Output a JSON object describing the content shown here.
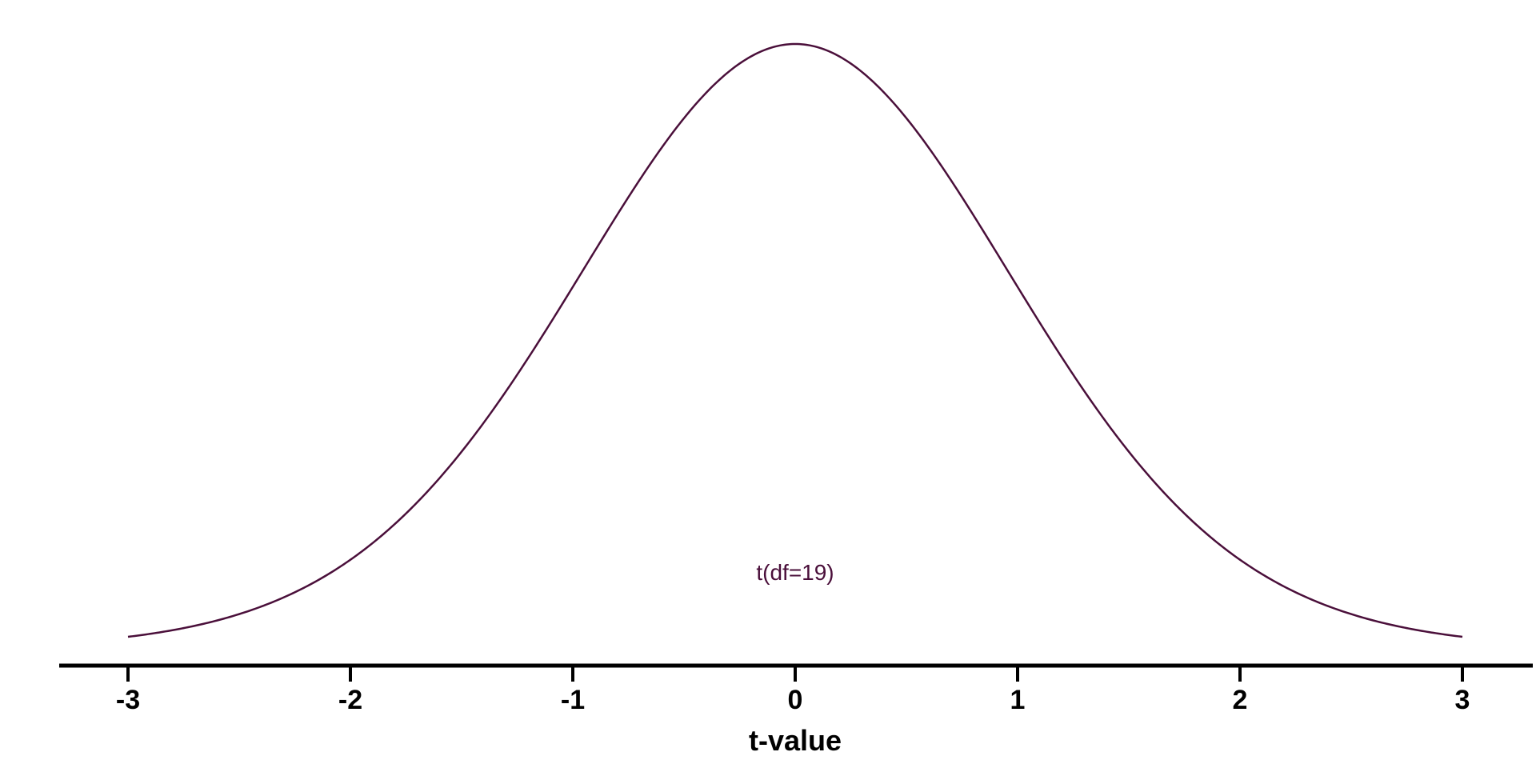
{
  "chart_data": {
    "type": "line",
    "xlabel": "t-value",
    "ylabel": "",
    "xlim": [
      -3.3,
      3.3
    ],
    "x_ticks": [
      -3,
      -2,
      -1,
      0,
      1,
      2,
      3
    ],
    "tick_labels": [
      "-3",
      "-2",
      "-1",
      "0",
      "1",
      "2",
      "3"
    ],
    "grid": false,
    "y_axis_shown": false,
    "series": [
      {
        "name": "t(df=19)",
        "distribution": "student-t",
        "df": 19,
        "x_range": [
          -3,
          3
        ],
        "color": "#4a0f3a"
      }
    ],
    "annotation": {
      "text": "t(df=19)",
      "x": 0,
      "color": "#4a0f3a"
    }
  }
}
